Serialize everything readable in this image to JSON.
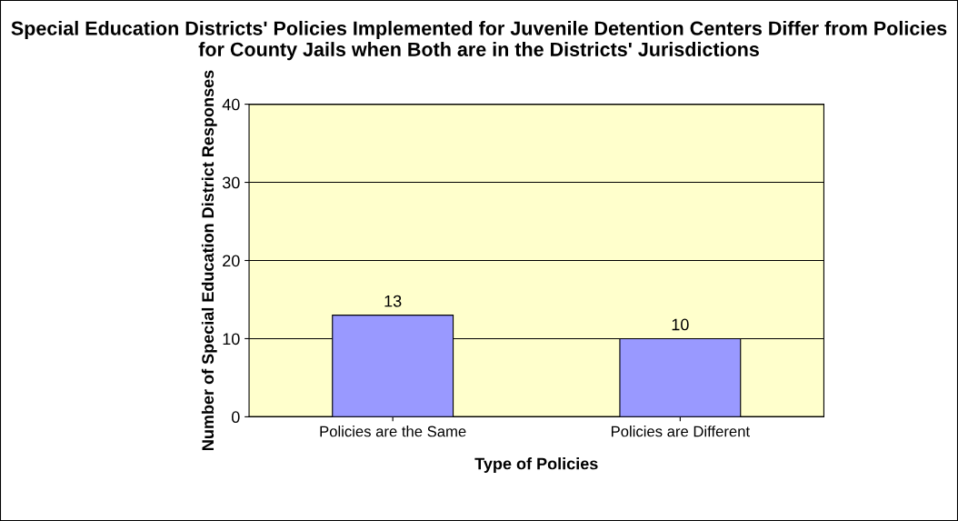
{
  "chart_data": {
    "type": "bar",
    "title": "Special Education Districts' Policies Implemented for Juvenile Detention Centers Differ from Policies for County Jails when Both are in the Districts' Jurisdictions",
    "xlabel": "Type of Policies",
    "ylabel": "Number of Special Education District Responses",
    "categories": [
      "Policies are the Same",
      "Policies are Different"
    ],
    "values": [
      13,
      10
    ],
    "color": "#9999ff",
    "ylim": [
      0,
      40
    ],
    "yticks": [
      0,
      10,
      20,
      30,
      40
    ],
    "grid": "y",
    "data_labels": true
  }
}
